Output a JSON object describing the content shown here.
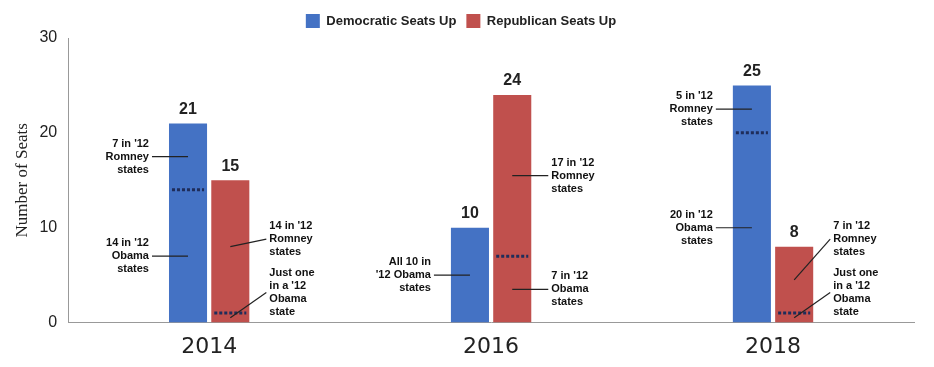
{
  "chart_data": {
    "type": "bar",
    "categories": [
      "2014",
      "2016",
      "2018"
    ],
    "series": [
      {
        "name": "Democratic Seats Up",
        "color": "#4472c4",
        "values": [
          21,
          10,
          25
        ],
        "obama_state_seats": [
          14,
          10,
          20
        ]
      },
      {
        "name": "Republican Seats Up",
        "color": "#c0504d",
        "values": [
          15,
          24,
          8
        ],
        "obama_state_seats": [
          1,
          7,
          1
        ]
      }
    ],
    "y_label": "Number of Seats",
    "ylim": [
      0,
      30
    ],
    "yticks": [
      0,
      10,
      20,
      30
    ],
    "grid": false,
    "legend": "top",
    "data_labels": true,
    "annotations": [
      {
        "text": "7 in '12 Romney states",
        "series": "Democratic Seats Up",
        "category": "2014",
        "segment": "romney"
      },
      {
        "text": "14 in '12 Obama states",
        "series": "Democratic Seats Up",
        "category": "2014",
        "segment": "obama"
      },
      {
        "text": "14 in '12 Romney states",
        "series": "Republican Seats Up",
        "category": "2014",
        "segment": "romney"
      },
      {
        "text": "Just one in a '12 Obama state",
        "series": "Republican Seats Up",
        "category": "2014",
        "segment": "obama"
      },
      {
        "text": "All 10 in '12 Obama states",
        "series": "Democratic Seats Up",
        "category": "2016",
        "segment": "obama"
      },
      {
        "text": "17 in '12 Romney states",
        "series": "Republican Seats Up",
        "category": "2016",
        "segment": "romney"
      },
      {
        "text": "7 in '12 Obama states",
        "series": "Republican Seats Up",
        "category": "2016",
        "segment": "obama"
      },
      {
        "text": "5 in '12 Romney states",
        "series": "Democratic Seats Up",
        "category": "2018",
        "segment": "romney"
      },
      {
        "text": "20 in '12 Obama states",
        "series": "Democratic Seats Up",
        "category": "2018",
        "segment": "obama"
      },
      {
        "text": "7 in '12 Romney states",
        "series": "Republican Seats Up",
        "category": "2018",
        "segment": "romney"
      },
      {
        "text": "Just one in a '12 Obama state",
        "series": "Republican Seats Up",
        "category": "2018",
        "segment": "obama"
      }
    ]
  }
}
